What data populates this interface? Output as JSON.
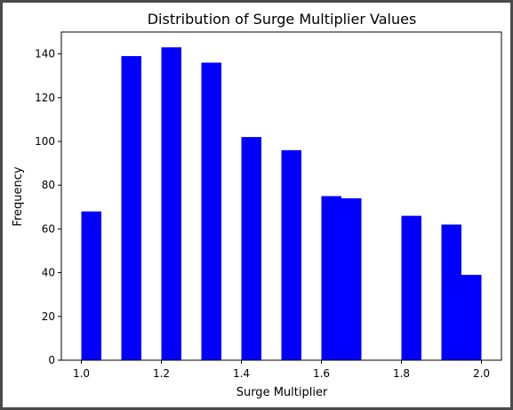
{
  "chart_data": {
    "type": "bar",
    "title": "Distribution of Surge Multiplier Values",
    "xlabel": "Surge Multiplier",
    "ylabel": "Frequency",
    "bar_color": "#0000ff",
    "bins": [
      {
        "x0": 1.0,
        "x1": 1.05,
        "count": 68
      },
      {
        "x0": 1.1,
        "x1": 1.15,
        "count": 139
      },
      {
        "x0": 1.2,
        "x1": 1.25,
        "count": 143
      },
      {
        "x0": 1.3,
        "x1": 1.35,
        "count": 136
      },
      {
        "x0": 1.4,
        "x1": 1.45,
        "count": 102
      },
      {
        "x0": 1.5,
        "x1": 1.55,
        "count": 96
      },
      {
        "x0": 1.6,
        "x1": 1.65,
        "count": 75
      },
      {
        "x0": 1.65,
        "x1": 1.7,
        "count": 74
      },
      {
        "x0": 1.8,
        "x1": 1.85,
        "count": 66
      },
      {
        "x0": 1.9,
        "x1": 1.95,
        "count": 62
      },
      {
        "x0": 1.95,
        "x1": 2.0,
        "count": 39
      }
    ],
    "xlim": [
      0.95,
      2.05
    ],
    "ylim": [
      0,
      150
    ],
    "xticks": [
      1.0,
      1.2,
      1.4,
      1.6,
      1.8,
      2.0
    ],
    "xtick_labels": [
      "1.0",
      "1.2",
      "1.4",
      "1.6",
      "1.8",
      "2.0"
    ],
    "yticks": [
      0,
      20,
      40,
      60,
      80,
      100,
      120,
      140
    ],
    "ytick_labels": [
      "0",
      "20",
      "40",
      "60",
      "80",
      "100",
      "120",
      "140"
    ],
    "grid": false,
    "legend": "none"
  }
}
